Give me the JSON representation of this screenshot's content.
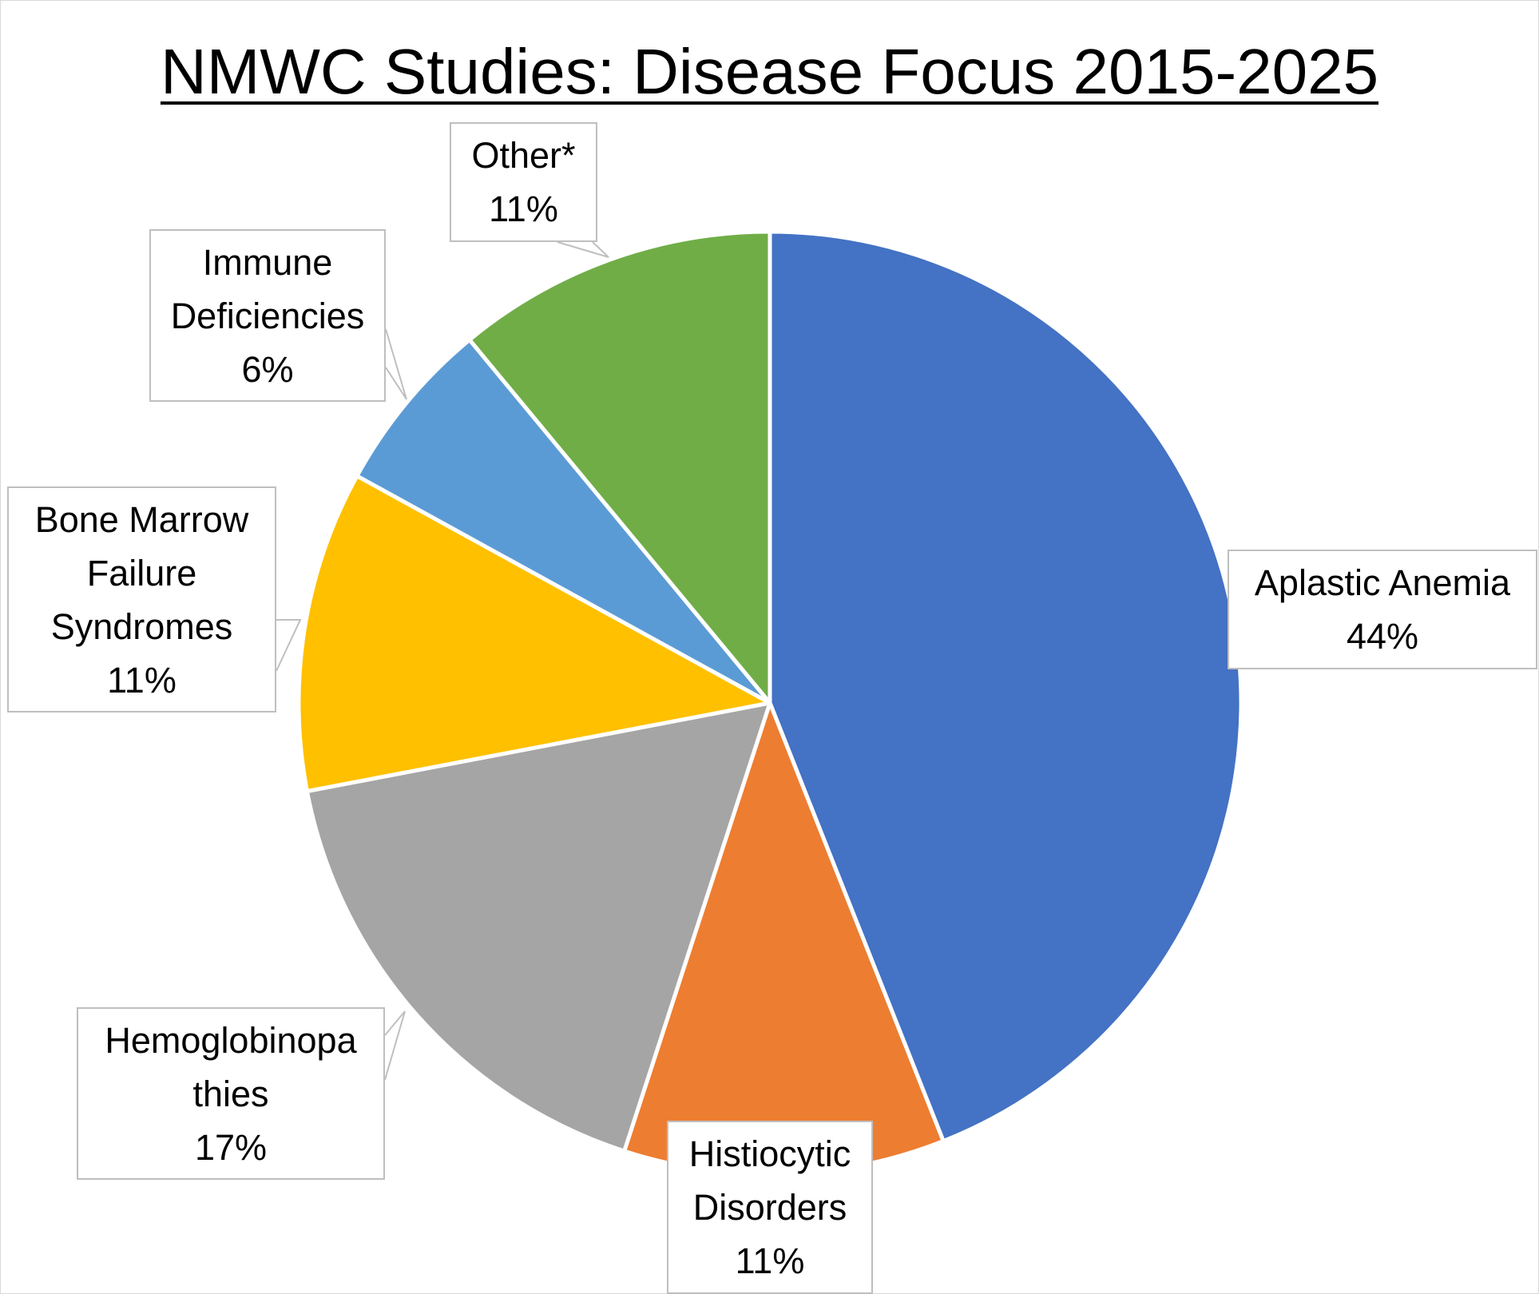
{
  "chart_data": {
    "type": "pie",
    "title": "NMWC Studies: Disease Focus 2015-2025",
    "slices": [
      {
        "label_lines": [
          "Aplastic Anemia"
        ],
        "value": 44,
        "value_label": "44%",
        "color": "#4472c4"
      },
      {
        "label_lines": [
          "Histiocytic",
          "Disorders"
        ],
        "value": 11,
        "value_label": "11%",
        "color": "#ed7d31"
      },
      {
        "label_lines": [
          "Hemoglobinopa",
          "thies"
        ],
        "value": 17,
        "value_label": "17%",
        "color": "#a5a5a5"
      },
      {
        "label_lines": [
          "Bone Marrow",
          "Failure",
          "Syndromes"
        ],
        "value": 11,
        "value_label": "11%",
        "color": "#ffc000"
      },
      {
        "label_lines": [
          "Immune",
          "Deficiencies"
        ],
        "value": 6,
        "value_label": "6%",
        "color": "#5b9bd5"
      },
      {
        "label_lines": [
          "Other*"
        ],
        "value": 11,
        "value_label": "11%",
        "color": "#70ad47"
      }
    ],
    "legend": "none"
  }
}
